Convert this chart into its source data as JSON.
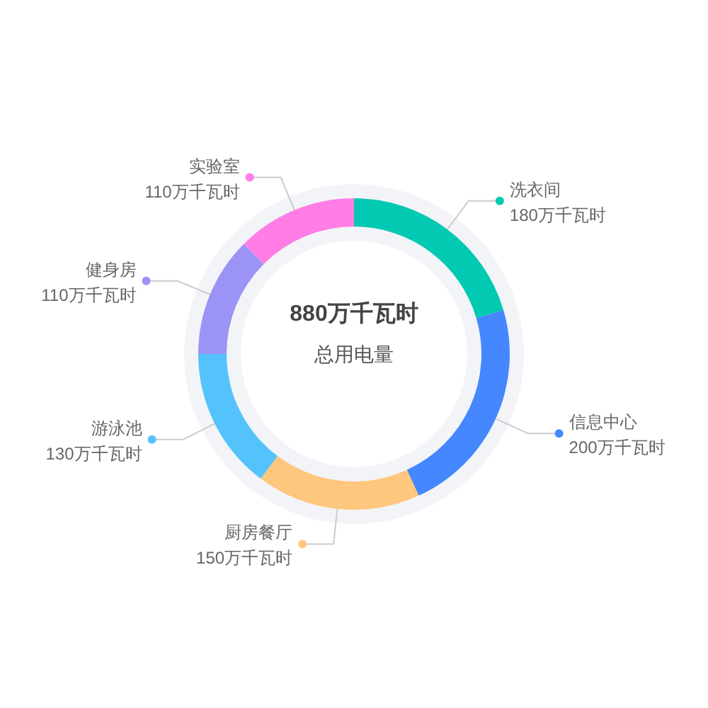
{
  "chart_data": {
    "type": "donut",
    "categories": [
      "洗衣间",
      "信息中心",
      "厨房餐厅",
      "游泳池",
      "健身房",
      "实验室"
    ],
    "values": [
      180,
      200,
      150,
      130,
      110,
      110
    ],
    "colors": [
      "#02c9b2",
      "#4587ff",
      "#ffc67d",
      "#55c3fb",
      "#9b93f5",
      "#ff7de4"
    ],
    "value_labels": [
      "180万千瓦时",
      "200万千瓦时",
      "150万千瓦时",
      "130万千瓦时",
      "110万千瓦时",
      "110万千瓦时"
    ],
    "annotations": [
      "880万千瓦时",
      "总用电量"
    ]
  }
}
